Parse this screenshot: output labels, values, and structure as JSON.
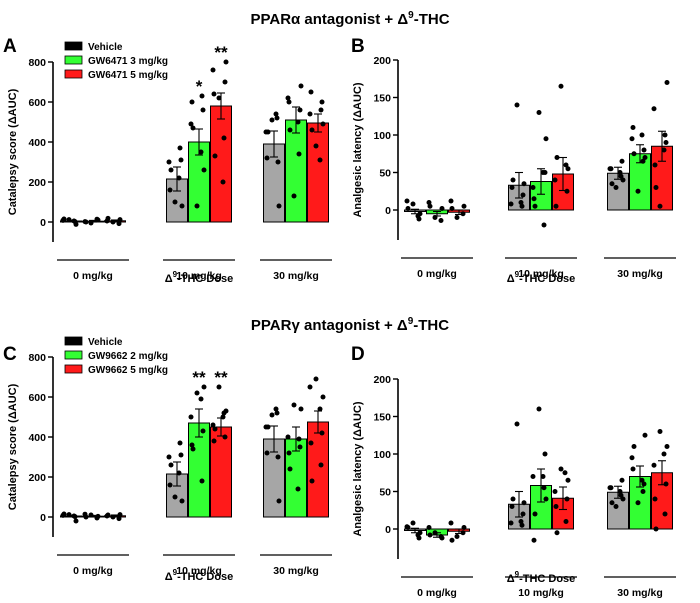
{
  "titles": {
    "top": {
      "pre": "PPARα antagonist + Δ",
      "sup": "9",
      "post": "-THC"
    },
    "bottom": {
      "pre": "PPARγ antagonist + Δ",
      "sup": "9",
      "post": "-THC"
    }
  },
  "panel_letters": [
    "A",
    "B",
    "C",
    "D"
  ],
  "colors": {
    "vehicle": "#a6a6a6",
    "low": "#33ff33",
    "high": "#ff1a1a",
    "dots": "#000000",
    "axis": "#000000"
  },
  "chart_data": [
    {
      "panel": "A",
      "type": "bar",
      "ylabel": "Catalepsy score (ΔAUC)",
      "xlabel": {
        "pre": "Δ",
        "sup": "9",
        "post": "-THC Dose"
      },
      "ylim": [
        -100,
        800
      ],
      "yticks": [
        0,
        200,
        400,
        600,
        800
      ],
      "groups": [
        "0 mg/kg",
        "10 mg/kg",
        "30 mg/kg"
      ],
      "legend": [
        "Vehicle",
        "GW6471 3 mg/kg",
        "GW6471 5 mg/kg"
      ],
      "series": [
        {
          "name": "Vehicle",
          "values": [
            5,
            215,
            390
          ],
          "sem": [
            4,
            60,
            65
          ],
          "points": [
            [
              12,
              -12,
              8,
              2,
              15,
              5
            ],
            [
              100,
              80,
              300,
              310,
              160,
              370,
              260,
              220
            ],
            [
              510,
              80,
              450,
              300,
              320,
              520,
              450,
              540
            ]
          ]
        },
        {
          "name": "GW6471 3 mg/kg",
          "values": [
            4,
            400,
            510
          ],
          "sem": [
            4,
            65,
            65
          ],
          "points": [
            [
              -5,
              10,
              2,
              14,
              0
            ],
            [
              80,
              260,
              490,
              560,
              600,
              630,
              470,
              350
            ],
            [
              130,
              680,
              620,
              560,
              600,
              340,
              460,
              500
            ]
          ]
        },
        {
          "name": "GW6471 5 mg/kg",
          "values": [
            6,
            580,
            495
          ],
          "sem": [
            4,
            65,
            45
          ],
          "points": [
            [
              0,
              12,
              5,
              -8,
              18
            ],
            [
              620,
              800,
              760,
              700,
              640,
              420,
              330,
              200
            ],
            [
              380,
              490,
              540,
              600,
              650,
              560,
              460,
              310
            ]
          ]
        }
      ],
      "annotations": [
        {
          "group": 1,
          "series": 1,
          "text": "*"
        },
        {
          "group": 1,
          "series": 2,
          "text": "**"
        }
      ]
    },
    {
      "panel": "B",
      "type": "bar",
      "ylabel": "Analgesic latency (ΔAUC)",
      "xlabel": {
        "pre": "Δ",
        "sup": "9",
        "post": "-THC Dose"
      },
      "ylim": [
        -40,
        200
      ],
      "yticks": [
        0,
        50,
        100,
        150,
        200
      ],
      "groups": [
        "0 mg/kg",
        "10 mg/kg",
        "30 mg/kg"
      ],
      "series": [
        {
          "name": "Vehicle",
          "values": [
            -2,
            33,
            49
          ],
          "sem": [
            3,
            17,
            8
          ],
          "points": [
            [
              8,
              -5,
              12,
              -12,
              2,
              -8
            ],
            [
              140,
              35,
              8,
              20,
              30,
              5,
              40,
              10
            ],
            [
              30,
              40,
              55,
              65,
              55,
              45,
              35,
              50
            ]
          ]
        },
        {
          "name": "GW6471 3 mg/kg",
          "values": [
            -5,
            38,
            75
          ],
          "sem": [
            3,
            17,
            12
          ],
          "points": [
            [
              -10,
              2,
              10,
              -14,
              5
            ],
            [
              130,
              95,
              30,
              50,
              15,
              -20,
              5,
              50
            ],
            [
              25,
              70,
              95,
              80,
              110,
              65,
              75,
              100
            ]
          ]
        },
        {
          "name": "GW6471 5 mg/kg",
          "values": [
            -3,
            48,
            85
          ],
          "sem": [
            3,
            22,
            20
          ],
          "points": [
            [
              -10,
              5,
              12,
              -5,
              2
            ],
            [
              165,
              55,
              40,
              25,
              5,
              60,
              70
            ],
            [
              5,
              170,
              135,
              90,
              60,
              100,
              30,
              80
            ]
          ]
        }
      ]
    },
    {
      "panel": "C",
      "type": "bar",
      "ylabel": "Catalepsy score (ΔAUC)",
      "xlabel": {
        "pre": "Δ",
        "sup": "9",
        "post": "-THC Dose"
      },
      "ylim": [
        -100,
        800
      ],
      "yticks": [
        0,
        200,
        400,
        600,
        800
      ],
      "groups": [
        "0 mg/kg",
        "10 mg/kg",
        "30 mg/kg"
      ],
      "legend": [
        "Vehicle",
        "GW9662 2 mg/kg",
        "GW9662 5 mg/kg"
      ],
      "series": [
        {
          "name": "Vehicle",
          "values": [
            5,
            215,
            390
          ],
          "sem": [
            4,
            60,
            65
          ],
          "points": [
            [
              12,
              -20,
              8,
              2,
              15,
              5
            ],
            [
              100,
              80,
              300,
              310,
              160,
              370,
              260,
              220
            ],
            [
              510,
              80,
              450,
              300,
              320,
              520,
              450,
              540
            ]
          ]
        },
        {
          "name": "GW9662 2 mg/kg",
          "values": [
            4,
            470,
            390
          ],
          "sem": [
            4,
            70,
            60
          ],
          "points": [
            [
              10,
              3,
              14,
              -5,
              0
            ],
            [
              620,
              650,
              500,
              430,
              360,
              180,
              340,
              590
            ],
            [
              560,
              540,
              400,
              350,
              320,
              390,
              240,
              140
            ]
          ]
        },
        {
          "name": "GW9662 5 mg/kg",
          "values": [
            6,
            450,
            475
          ],
          "sem": [
            4,
            45,
            55
          ],
          "points": [
            [
              0,
              12,
              5,
              -8,
              10
            ],
            [
              650,
              530,
              460,
              400,
              380,
              520,
              440,
              500
            ],
            [
              690,
              600,
              650,
              420,
              370,
              260,
              180,
              540
            ]
          ]
        }
      ],
      "annotations": [
        {
          "group": 1,
          "series": 1,
          "text": "**"
        },
        {
          "group": 1,
          "series": 2,
          "text": "**"
        }
      ]
    },
    {
      "panel": "D",
      "type": "bar",
      "ylabel": "Analgesic latency (ΔAUC)",
      "xlabel": {
        "pre": "Δ",
        "sup": "9",
        "post": "-THC Dose"
      },
      "ylim": [
        -40,
        200
      ],
      "yticks": [
        0,
        50,
        100,
        150,
        200
      ],
      "groups": [
        "0 mg/kg",
        "10 mg/kg",
        "30 mg/kg"
      ],
      "series": [
        {
          "name": "Vehicle",
          "values": [
            -2,
            33,
            49
          ],
          "sem": [
            3,
            17,
            8
          ],
          "points": [
            [
              8,
              -5,
              3,
              -12,
              2,
              -8
            ],
            [
              140,
              35,
              8,
              20,
              30,
              5,
              40,
              10
            ],
            [
              30,
              40,
              55,
              65,
              55,
              45,
              35,
              50
            ]
          ]
        },
        {
          "name": "GW9662 2 mg/kg",
          "values": [
            -8,
            58,
            70
          ],
          "sem": [
            3,
            22,
            14
          ],
          "points": [
            [
              -5,
              -12,
              2,
              -10,
              -8
            ],
            [
              160,
              40,
              70,
              100,
              -15,
              55,
              20,
              70
            ],
            [
              35,
              125,
              95,
              60,
              80,
              50,
              110,
              65
            ]
          ]
        },
        {
          "name": "GW9662 5 mg/kg",
          "values": [
            -3,
            41,
            75
          ],
          "sem": [
            3,
            15,
            16
          ],
          "points": [
            [
              -10,
              2,
              8,
              -5,
              -15
            ],
            [
              80,
              65,
              50,
              40,
              30,
              10,
              -5,
              75
            ],
            [
              130,
              110,
              85,
              60,
              40,
              20,
              0,
              100
            ]
          ]
        }
      ]
    }
  ]
}
